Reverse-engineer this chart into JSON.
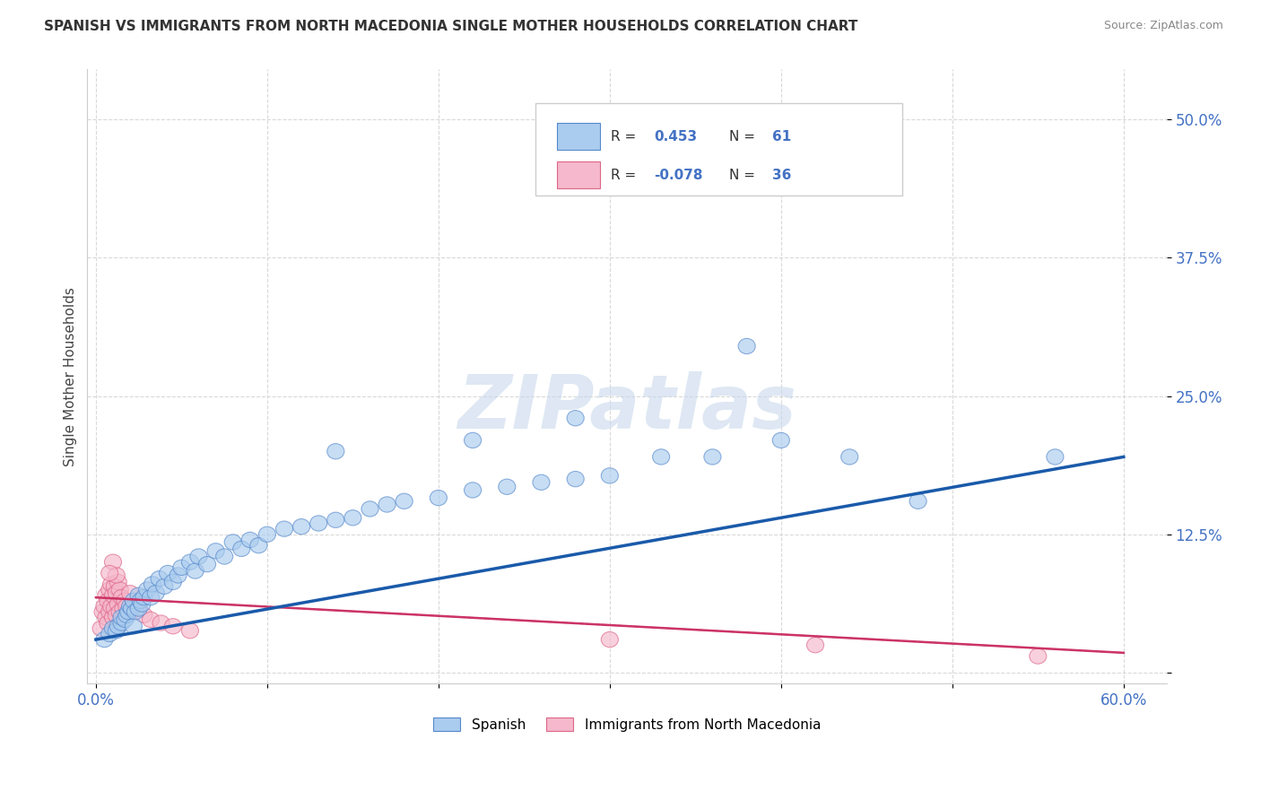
{
  "title": "SPANISH VS IMMIGRANTS FROM NORTH MACEDONIA SINGLE MOTHER HOUSEHOLDS CORRELATION CHART",
  "source": "Source: ZipAtlas.com",
  "ylabel": "Single Mother Households",
  "xlim": [
    -0.005,
    0.625
  ],
  "ylim": [
    -0.01,
    0.545
  ],
  "xticks": [
    0.0,
    0.1,
    0.2,
    0.3,
    0.4,
    0.5,
    0.6
  ],
  "xticklabels": [
    "0.0%",
    "",
    "",
    "",
    "",
    "",
    "60.0%"
  ],
  "yticks": [
    0.0,
    0.125,
    0.25,
    0.375,
    0.5
  ],
  "yticklabels": [
    "",
    "12.5%",
    "25.0%",
    "37.5%",
    "50.0%"
  ],
  "background_color": "#ffffff",
  "grid_color": "#d0d0d0",
  "spanish_color": "#aaccee",
  "spanish_edge_color": "#5588cc",
  "macedonian_color": "#f5b8cc",
  "macedonian_edge_color": "#dd6688",
  "trendline_blue_color": "#1a5aaa",
  "trendline_pink_color": "#cc3366",
  "watermark_color": "#c8d8ec",
  "watermark": "ZIPatlas",
  "legend_r1_label": "R = ",
  "legend_r1_val": "0.453",
  "legend_n1_label": "N = ",
  "legend_n1_val": "61",
  "legend_r2_label": "R = ",
  "legend_r2_val": "-0.078",
  "legend_n2_label": "N = ",
  "legend_n2_val": "36",
  "sp_label": "Spanish",
  "mac_label": "Immigrants from North Macedonia",
  "spanish_x": [
    0.005,
    0.008,
    0.01,
    0.012,
    0.013,
    0.015,
    0.015,
    0.017,
    0.018,
    0.019,
    0.02,
    0.021,
    0.022,
    0.022,
    0.023,
    0.025,
    0.025,
    0.026,
    0.027,
    0.028,
    0.03,
    0.032,
    0.033,
    0.035,
    0.037,
    0.04,
    0.042,
    0.045,
    0.048,
    0.05,
    0.055,
    0.058,
    0.06,
    0.065,
    0.07,
    0.075,
    0.08,
    0.085,
    0.09,
    0.095,
    0.1,
    0.11,
    0.12,
    0.13,
    0.14,
    0.15,
    0.16,
    0.17,
    0.18,
    0.2,
    0.22,
    0.24,
    0.26,
    0.28,
    0.3,
    0.33,
    0.36,
    0.4,
    0.44,
    0.48,
    0.56
  ],
  "spanish_y": [
    0.03,
    0.035,
    0.04,
    0.038,
    0.042,
    0.045,
    0.05,
    0.048,
    0.052,
    0.055,
    0.06,
    0.058,
    0.042,
    0.065,
    0.055,
    0.07,
    0.058,
    0.065,
    0.062,
    0.068,
    0.075,
    0.068,
    0.08,
    0.072,
    0.085,
    0.078,
    0.09,
    0.082,
    0.088,
    0.095,
    0.1,
    0.092,
    0.105,
    0.098,
    0.11,
    0.105,
    0.118,
    0.112,
    0.12,
    0.115,
    0.125,
    0.13,
    0.132,
    0.135,
    0.138,
    0.14,
    0.148,
    0.152,
    0.155,
    0.158,
    0.165,
    0.168,
    0.172,
    0.175,
    0.178,
    0.195,
    0.195,
    0.21,
    0.195,
    0.155,
    0.195
  ],
  "spanish_y_outliers": [
    [
      0.38,
      0.295
    ],
    [
      0.28,
      0.23
    ],
    [
      0.22,
      0.21
    ],
    [
      0.14,
      0.2
    ]
  ],
  "macedonian_x": [
    0.003,
    0.004,
    0.005,
    0.006,
    0.006,
    0.007,
    0.007,
    0.008,
    0.008,
    0.009,
    0.009,
    0.01,
    0.01,
    0.011,
    0.011,
    0.012,
    0.012,
    0.013,
    0.013,
    0.014,
    0.014,
    0.015,
    0.016,
    0.017,
    0.018,
    0.02,
    0.022,
    0.025,
    0.028,
    0.032,
    0.038,
    0.045,
    0.055,
    0.3,
    0.42,
    0.55
  ],
  "macedonian_y": [
    0.04,
    0.055,
    0.06,
    0.05,
    0.07,
    0.045,
    0.065,
    0.055,
    0.075,
    0.06,
    0.08,
    0.05,
    0.07,
    0.058,
    0.078,
    0.052,
    0.072,
    0.062,
    0.082,
    0.055,
    0.075,
    0.068,
    0.058,
    0.065,
    0.06,
    0.055,
    0.062,
    0.058,
    0.052,
    0.048,
    0.045,
    0.042,
    0.038,
    0.03,
    0.025,
    0.015
  ],
  "mac_outliers": [
    [
      0.01,
      0.1
    ],
    [
      0.012,
      0.088
    ],
    [
      0.02,
      0.072
    ],
    [
      0.008,
      0.09
    ]
  ],
  "blue_line_x": [
    0.0,
    0.6
  ],
  "blue_line_y": [
    0.03,
    0.195
  ],
  "pink_line_x": [
    0.0,
    0.6
  ],
  "pink_line_y": [
    0.068,
    0.018
  ]
}
